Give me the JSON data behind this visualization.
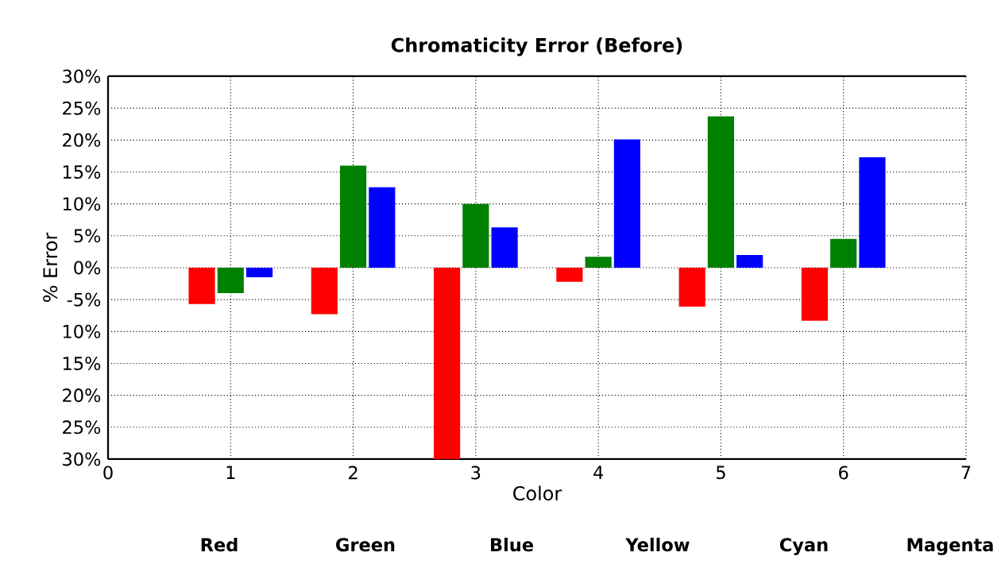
{
  "chart_data": {
    "type": "bar",
    "title": "Chromaticity Error (Before)",
    "xlabel": "Color",
    "ylabel": "% Error",
    "x": [
      1,
      2,
      3,
      4,
      5,
      6
    ],
    "series": [
      {
        "color": "#ff0000",
        "values": [
          -5.7,
          -7.3,
          -30,
          -2.2,
          -6.1,
          -8.3
        ]
      },
      {
        "color": "#008000",
        "values": [
          -4.0,
          16.0,
          10.0,
          1.7,
          23.7,
          4.5
        ]
      },
      {
        "color": "#0000ff",
        "values": [
          -1.5,
          12.6,
          6.3,
          20.1,
          2.0,
          17.3
        ]
      }
    ],
    "xlim": [
      0,
      7
    ],
    "xticks": [
      0,
      1,
      2,
      3,
      4,
      5,
      6,
      7
    ],
    "ylim": [
      -30,
      30
    ],
    "yticks": [
      {
        "value": -30,
        "label": "30%"
      },
      {
        "value": -25,
        "label": "25%"
      },
      {
        "value": -20,
        "label": "20%"
      },
      {
        "value": -15,
        "label": "15%"
      },
      {
        "value": -10,
        "label": "10%"
      },
      {
        "value": -5,
        "label": "-5%"
      },
      {
        "value": 0,
        "label": "0%"
      },
      {
        "value": 5,
        "label": "5%"
      },
      {
        "value": 10,
        "label": "10%"
      },
      {
        "value": 15,
        "label": "15%"
      },
      {
        "value": 20,
        "label": "20%"
      },
      {
        "value": 25,
        "label": "25%"
      },
      {
        "value": 30,
        "label": "30%"
      }
    ],
    "grid": true,
    "annotations": [
      "Red",
      "Green",
      "Blue",
      "Yellow",
      "Cyan",
      "Magenta"
    ]
  }
}
